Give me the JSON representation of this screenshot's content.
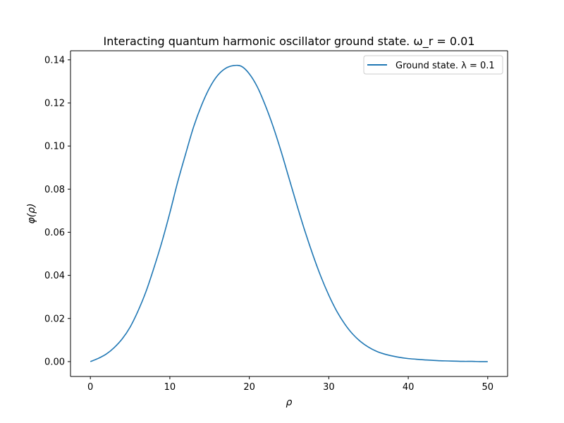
{
  "chart_data": {
    "type": "line",
    "title": "Interacting quantum harmonic oscillator ground state. ω_r = 0.01",
    "xlabel": "ρ",
    "ylabel": "φ(ρ)",
    "xlim": [
      -2.5,
      52.5
    ],
    "ylim": [
      -0.0069,
      0.1442
    ],
    "x_ticks": [
      "0",
      "10",
      "20",
      "30",
      "40",
      "50"
    ],
    "x_tick_values": [
      0,
      10,
      20,
      30,
      40,
      50
    ],
    "y_ticks": [
      "0.00",
      "0.02",
      "0.04",
      "0.06",
      "0.08",
      "0.10",
      "0.12",
      "0.14"
    ],
    "y_tick_values": [
      0,
      0.02,
      0.04,
      0.06,
      0.08,
      0.1,
      0.12,
      0.14
    ],
    "grid": false,
    "legend_position": "top-right",
    "series": [
      {
        "name": "Ground state. λ = 0.1",
        "color": "#1f77b4",
        "x": [
          0,
          1,
          2,
          3,
          4,
          5,
          6,
          7,
          8,
          9,
          10,
          11,
          12,
          13,
          14,
          15,
          16,
          17,
          18,
          19,
          20,
          21,
          22,
          23,
          24,
          25,
          26,
          27,
          28,
          29,
          30,
          31,
          32,
          33,
          34,
          35,
          36,
          37,
          38,
          39,
          40,
          41,
          42,
          43,
          44,
          45,
          46,
          47,
          48,
          49,
          50
        ],
        "y": [
          0.0,
          0.0015,
          0.0035,
          0.0065,
          0.0105,
          0.016,
          0.0235,
          0.0325,
          0.0435,
          0.0555,
          0.069,
          0.0835,
          0.0965,
          0.109,
          0.119,
          0.127,
          0.1327,
          0.136,
          0.1373,
          0.137,
          0.1335,
          0.1275,
          0.119,
          0.109,
          0.0975,
          0.085,
          0.0725,
          0.0605,
          0.0495,
          0.0395,
          0.0308,
          0.0234,
          0.0175,
          0.0128,
          0.0093,
          0.0067,
          0.0048,
          0.0035,
          0.0026,
          0.0019,
          0.0014,
          0.0011,
          0.0008,
          0.0006,
          0.0004,
          0.0003,
          0.0002,
          0.0001,
          0.0001,
          0.0,
          0.0
        ]
      }
    ]
  }
}
